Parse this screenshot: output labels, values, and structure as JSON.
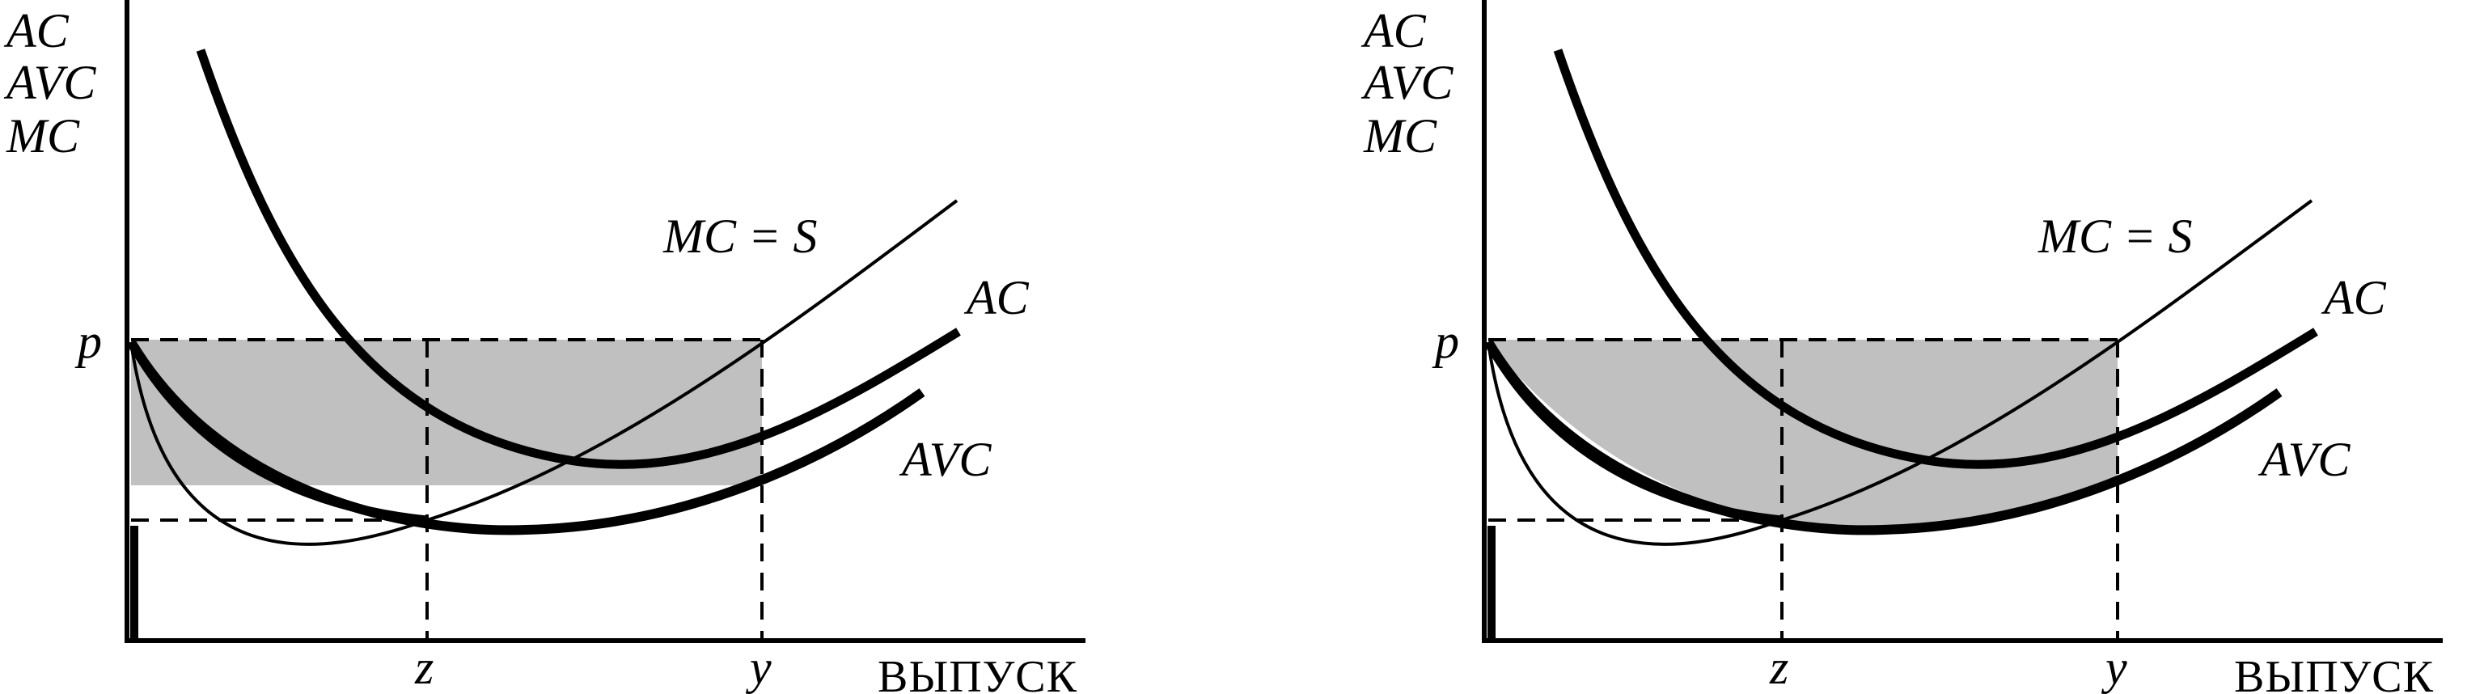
{
  "colors": {
    "shade": "#c0c0c0",
    "ink": "#000000",
    "background": "#ffffff"
  },
  "panels": [
    {
      "id": "left",
      "y_axis_labels": [
        "AC",
        "AVC",
        "MC"
      ],
      "x_axis_label": "ВЫПУСК",
      "price_label": "p",
      "tick_labels": [
        "z",
        "y"
      ],
      "curve_labels": {
        "mc": "MC = S",
        "ac": "AC",
        "avc": "AVC"
      }
    },
    {
      "id": "right",
      "y_axis_labels": [
        "AC",
        "AVC",
        "MC"
      ],
      "x_axis_label": "ВЫПУСК",
      "price_label": "p",
      "tick_labels": [
        "z",
        "y"
      ],
      "curve_labels": {
        "mc": "MC = S",
        "ac": "AC",
        "avc": "AVC"
      }
    }
  ]
}
